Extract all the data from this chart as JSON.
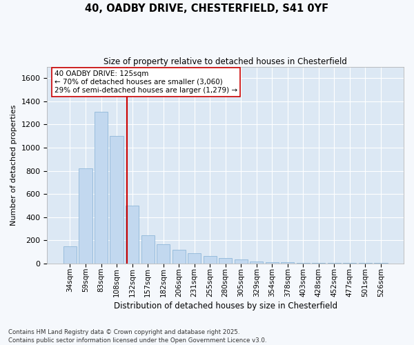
{
  "title_line1": "40, OADBY DRIVE, CHESTERFIELD, S41 0YF",
  "title_line2": "Size of property relative to detached houses in Chesterfield",
  "xlabel": "Distribution of detached houses by size in Chesterfield",
  "ylabel": "Number of detached properties",
  "bar_color": "#c2d8ef",
  "bar_edge_color": "#82afd3",
  "bg_color": "#dce8f4",
  "fig_bg_color": "#f5f8fc",
  "grid_color": "#ffffff",
  "vline_color": "#cc0000",
  "annotation_text": "40 OADBY DRIVE: 125sqm\n← 70% of detached houses are smaller (3,060)\n29% of semi-detached houses are larger (1,279) →",
  "annotation_box_facecolor": "#ffffff",
  "annotation_box_edgecolor": "#cc0000",
  "categories": [
    "34sqm",
    "59sqm",
    "83sqm",
    "108sqm",
    "132sqm",
    "157sqm",
    "182sqm",
    "206sqm",
    "231sqm",
    "255sqm",
    "280sqm",
    "305sqm",
    "329sqm",
    "354sqm",
    "378sqm",
    "403sqm",
    "428sqm",
    "452sqm",
    "477sqm",
    "501sqm",
    "526sqm"
  ],
  "values": [
    150,
    820,
    1310,
    1100,
    500,
    240,
    165,
    120,
    90,
    65,
    45,
    35,
    15,
    12,
    10,
    7,
    5,
    4,
    3,
    2,
    2
  ],
  "ylim_max": 1700,
  "yticks": [
    0,
    200,
    400,
    600,
    800,
    1000,
    1200,
    1400,
    1600
  ],
  "bin_starts": [
    34,
    59,
    83,
    108,
    132,
    157,
    182,
    206,
    231,
    255,
    280,
    305,
    329,
    354,
    378,
    403,
    428,
    452,
    477,
    501,
    526
  ],
  "bin_width": 25,
  "property_sqm": 125,
  "footnote": "Contains HM Land Registry data © Crown copyright and database right 2025.\nContains public sector information licensed under the Open Government Licence v3.0."
}
